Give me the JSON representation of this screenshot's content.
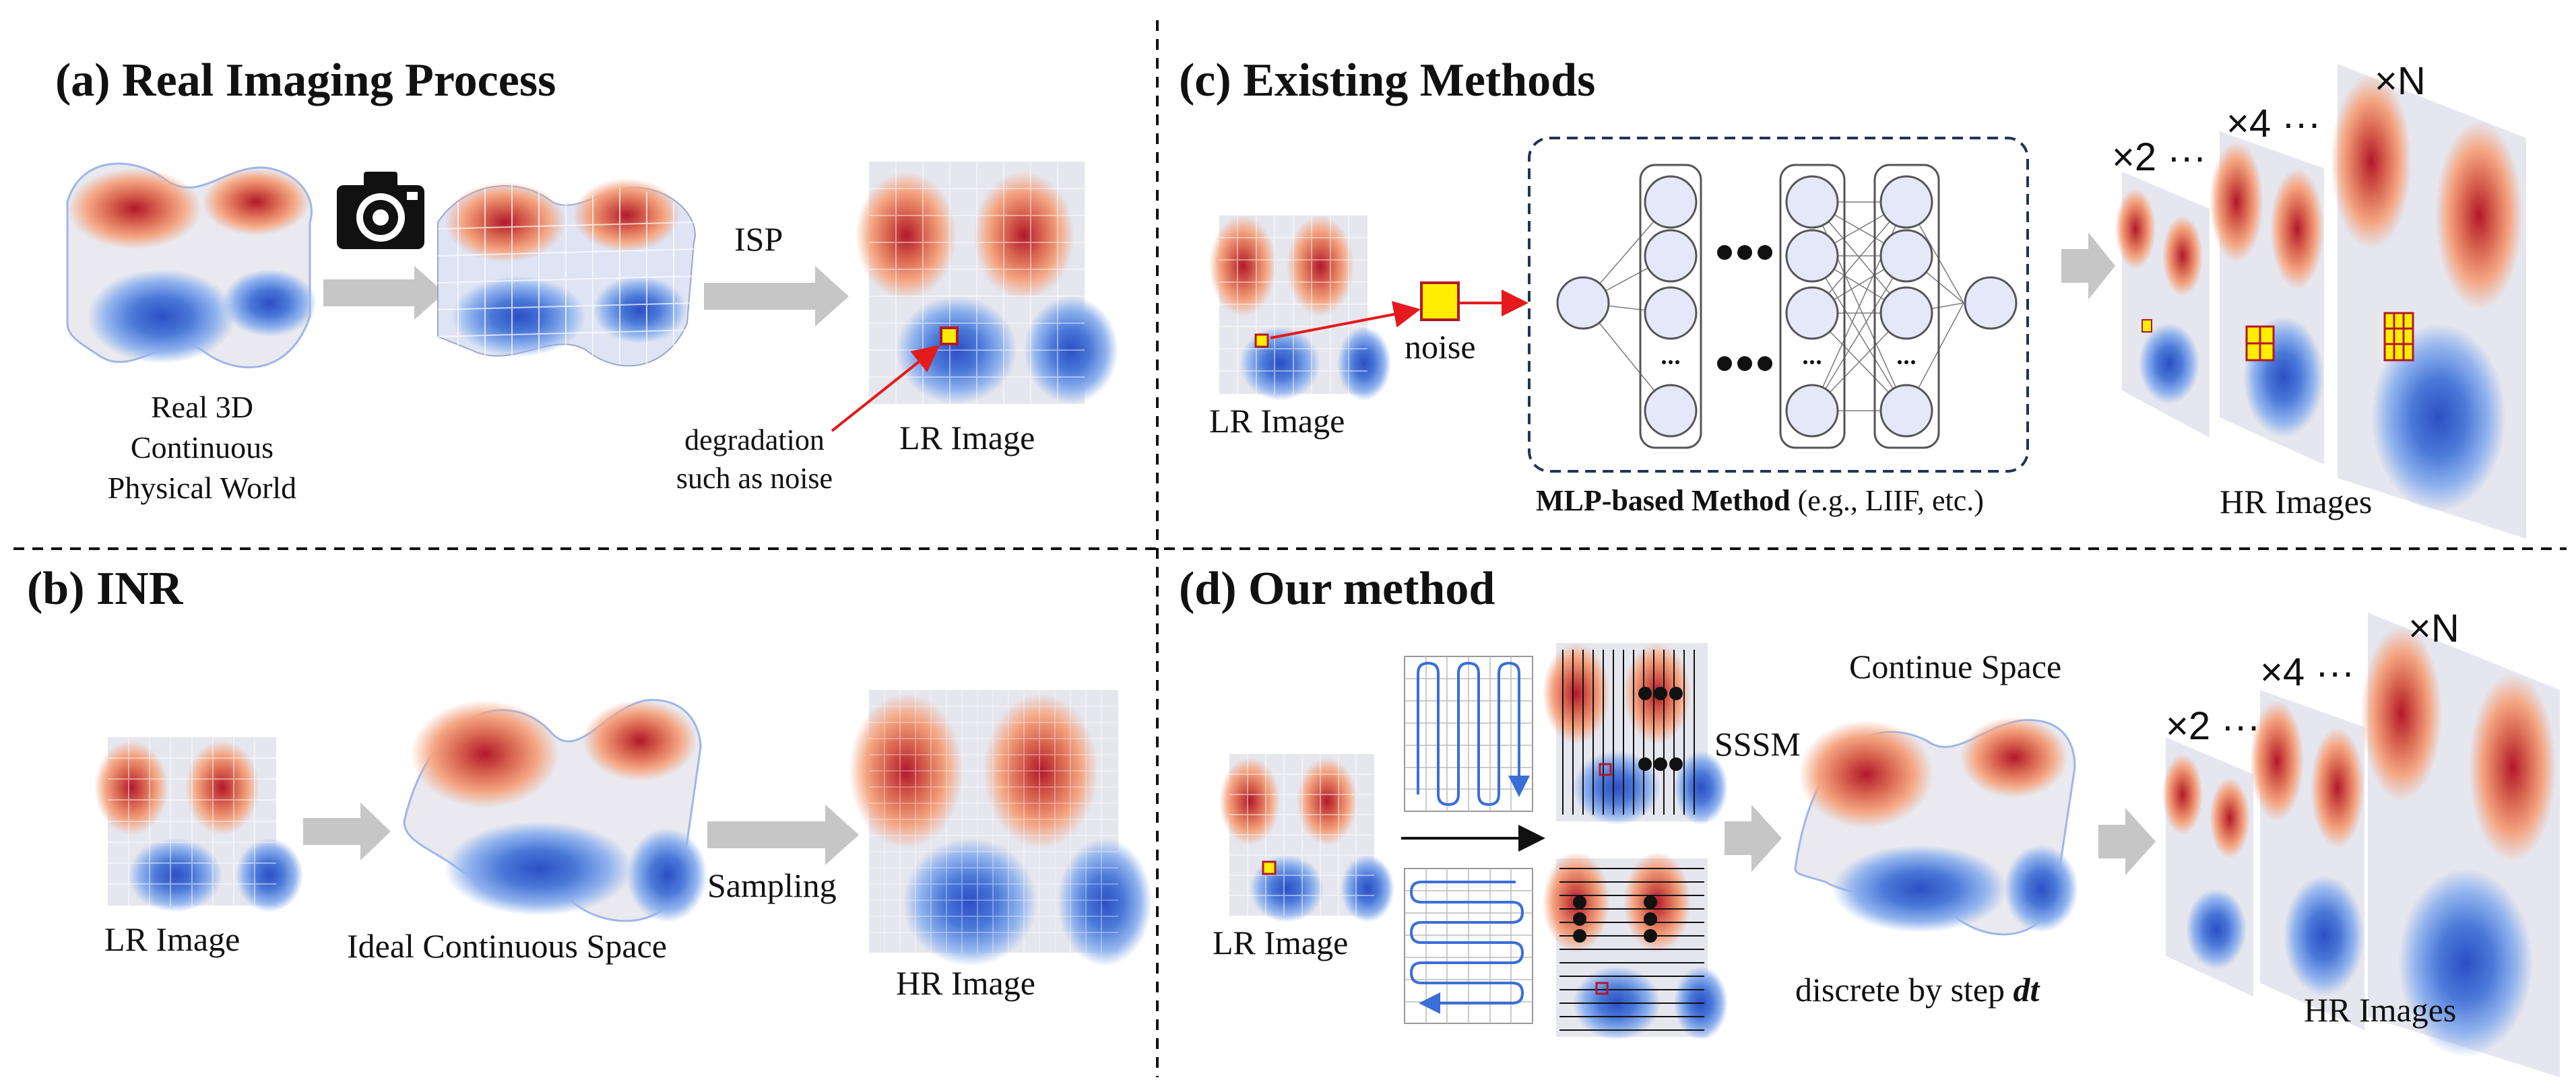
{
  "panel_a": {
    "title": "(a) Real Imaging Process",
    "world_label": [
      "Real 3D",
      "Continuous",
      "Physical World"
    ],
    "camera_icon": "camera-icon",
    "isp": "ISP",
    "degradation": [
      "degradation",
      "such as noise"
    ],
    "lr_image": "LR Image"
  },
  "panel_b": {
    "title": "(b) INR",
    "lr_image": "LR Image",
    "ideal_space": "Ideal Continuous Space",
    "sampling": "Sampling",
    "hr_image": "HR Image"
  },
  "panel_c": {
    "title": "(c) Existing Methods",
    "lr_image": "LR Image",
    "noise": "noise",
    "mlp_bold": "MLP-based Method",
    "mlp_rest": " (e.g., LIIF, etc.)",
    "hr_images": "HR Images",
    "scale_2": "×2 ···",
    "scale_4": "×4 ···",
    "scale_n": "×N"
  },
  "panel_d": {
    "title": "(d) Our method",
    "lr_image": "LR Image",
    "sssm": "SSSM",
    "continue_space": "Continue Space",
    "discrete_prefix": "discrete by step ",
    "discrete_var": "dt",
    "hr_images": "HR Images",
    "scale_2": "×2 ···",
    "scale_4": "×4 ···",
    "scale_n": "×N"
  },
  "colors": {
    "red": "#b2182b",
    "blue": "#2c5fd6",
    "arrow_gray": "#c6c6c6",
    "noise_yellow": "#ffee00",
    "annotation_red": "#e41a1c",
    "dashed_navy": "#22335a"
  }
}
